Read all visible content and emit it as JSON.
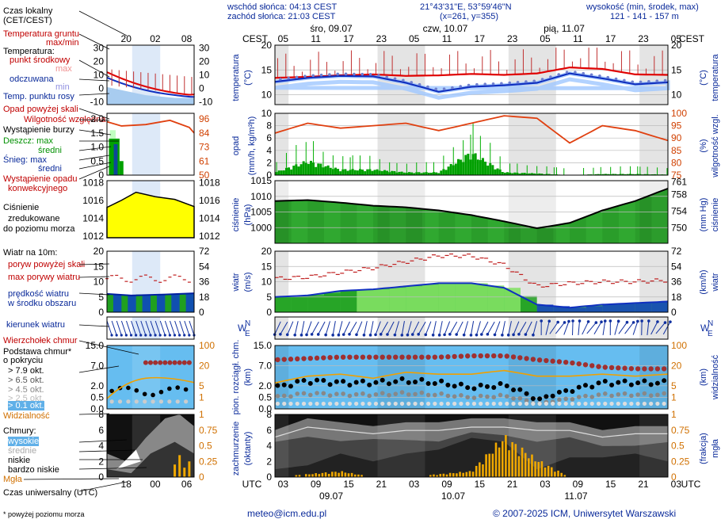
{
  "header": {
    "sunrise": "wschód słońca: 04:13 CEST",
    "sunset": "zachód słońca: 21:03 CEST",
    "coords": "21°43'31\"E, 53°59'46\"N",
    "grid": "(x=261, y=355)",
    "altitude_label": "wysokość (min, środek, max)",
    "altitude_values": "121 - 141 - 157 m"
  },
  "top_axis": {
    "tz": "CEST",
    "days": [
      "śro, 09.07",
      "czw, 10.07",
      "pią, 11.07"
    ],
    "hours": [
      "05",
      "11",
      "17",
      "23",
      "05",
      "11",
      "17",
      "23",
      "05",
      "11",
      "17",
      "23",
      "05"
    ]
  },
  "bottom_axis": {
    "tz": "UTC",
    "hours": [
      "03",
      "09",
      "15",
      "21",
      "03",
      "09",
      "15",
      "21",
      "03",
      "09",
      "15",
      "21",
      "03"
    ],
    "dates": [
      "09.07",
      "10.07",
      "11.07"
    ]
  },
  "legend": {
    "local_time": "Czas lokalny",
    "local_time_sub": "(CET/CEST)",
    "local_hours": [
      "20",
      "02",
      "08"
    ],
    "utc_label": "Czas uniwersalny (UTC)",
    "utc_hours": [
      "18",
      "00",
      "06"
    ],
    "footnote": "* powyżej poziomu morza",
    "temp": {
      "ground": "Temperatura gruntu",
      "ground_sub": "max/min",
      "title": "Temperatura:",
      "mid": "punkt środkowy",
      "max": "max",
      "min": "min",
      "felt": "odczuwana",
      "felt_max": "max",
      "felt_min": "min",
      "dew": "Temp. punktu rosy",
      "ticks": [
        "30",
        "20",
        "10",
        "0",
        "-10"
      ]
    },
    "precip": {
      "over": "Opad powyżej skali",
      "storm": "Wystąpienie burzy",
      "rh": "Wilgotność względna",
      "rain_max": "Deszcz: max",
      "rain_mid": "średni",
      "snow_max": "Śnieg:    max",
      "snow_mid": "średni",
      "conv": "Wystąpienie opadu",
      "conv2": "konwekcyjnego",
      "ticks_left": [
        "2.0",
        "1.5",
        "1.0",
        "0.5",
        "0"
      ],
      "ticks_right": [
        "96",
        "84",
        "73",
        "61",
        "50"
      ]
    },
    "pressure": {
      "l1": "Ciśnienie",
      "l2": "zredukowane",
      "l3": "do poziomu morza",
      "ticks_left": [
        "1018",
        "1016",
        "1014",
        "1012"
      ],
      "ticks_right": [
        "1018",
        "1016",
        "1014",
        "1012"
      ]
    },
    "wind": {
      "title": "Wiatr na 10m:",
      "gust_over": "poryw powyżej skali",
      "gust_max": "max porywy wiatru",
      "speed": "prędkość wiatru",
      "speed2": "w środku obszaru",
      "direction": "kierunek wiatru",
      "ticks_left": [
        "20",
        "15",
        "10",
        "5",
        "0"
      ],
      "ticks_right": [
        "72",
        "54",
        "36",
        "18",
        "0"
      ]
    },
    "clouds": {
      "top": "Wierzchołek chmur",
      "base": "Podstawa chmur*",
      "base2": "o pokryciu",
      "o79": "> 7.9 okt.",
      "o65": "> 6.5 okt.",
      "o45": "> 4.5 okt.",
      "o25": "> 2.5 okt.",
      "o01": "> 0.1 okt.",
      "vis": "Widzialność",
      "ticks_left": [
        "15.0",
        "7.0",
        "2.0",
        "0.5",
        "0.0"
      ],
      "ticks_right": [
        "100",
        "20",
        "5",
        "1"
      ]
    },
    "cover": {
      "title": "Chmury:",
      "high": "wysokie",
      "mid": "średnie",
      "low": "niskie",
      "vlow": "bardzo niskie",
      "fog": "Mgła",
      "ticks_left": [
        "8",
        "6",
        "4",
        "2",
        "0"
      ],
      "ticks_right": [
        "1",
        "0.75",
        "0.5",
        "0.25",
        "0"
      ]
    }
  },
  "axes_labels": {
    "temp_l": "temperatura",
    "temp_l2": "(°C)",
    "temp_r": "(°C)",
    "temp_r2": "temperatura",
    "prec_l": "opad",
    "prec_l2": "(mm/h, kg/m²h)",
    "prec_r": "(%)",
    "prec_r2": "wilgotność wzgl.",
    "pres_l": "ciśnienie",
    "pres_l2": "(hPa)",
    "pres_r": "(mm Hg)",
    "pres_r2": "ciśnienie",
    "wind_l": "wiatr",
    "wind_l2": "(m/s)",
    "wind_r": "(km/h)",
    "wind_r2": "wiatr",
    "cloud_l": "pion. rozciągł. chm.",
    "cloud_l2": "(km)",
    "cloud_r": "(km)",
    "cloud_r2": "widzialność",
    "cover_l": "zachmurzenie",
    "cover_l2": "(oktanty)",
    "cover_r": "(frakcja)",
    "cover_r2": "mgła"
  },
  "footer": {
    "email": "meteo@icm.edu.pl",
    "copyright": "© 2007-2025 ICM, Uniwersytet Warszawski"
  },
  "colors": {
    "red": "#e00000",
    "blue": "#1030c0",
    "green": "#00a000",
    "yellow": "#ffff00",
    "orange": "#e89000",
    "navy": "#000080"
  },
  "chart_data": [
    {
      "type": "line",
      "title": "temperatura",
      "ylabel": "(°C)",
      "ylim": [
        8,
        20
      ],
      "yticks": [
        10,
        15,
        20
      ],
      "x_hours_utc": [
        0,
        6,
        12,
        18,
        24,
        30,
        36,
        42,
        48,
        54,
        60,
        66,
        72
      ],
      "series": [
        {
          "name": "punkt środkowy",
          "values": [
            13.4,
            13.6,
            13.9,
            14.1,
            13.8,
            13.9,
            14.2,
            14.0,
            14.3,
            15.5,
            15.2,
            14.1,
            14.0
          ]
        },
        {
          "name": "odczuwana",
          "values": [
            12.6,
            13.4,
            13.8,
            13.7,
            12.4,
            10.6,
            11.6,
            11.9,
            12.4,
            14.3,
            13.3,
            12.1,
            12.5
          ]
        }
      ]
    },
    {
      "type": "bar",
      "title": "opad",
      "ylabel": "(mm/h, kg/m²h)",
      "ylim": [
        0,
        10
      ],
      "y2lim": [
        75,
        100
      ],
      "x_hours_utc": [
        0,
        6,
        12,
        18,
        24,
        30,
        36,
        42,
        48,
        54,
        60,
        66,
        72
      ],
      "series": [
        {
          "name": "średni",
          "values": [
            0.5,
            2.5,
            1.0,
            1.0,
            0.5,
            0.5,
            4.0,
            0.5,
            0.3,
            0.0,
            0.2,
            0.2,
            0.1
          ]
        },
        {
          "name": "wilgotność",
          "values": [
            92,
            96,
            94,
            95,
            96,
            93,
            96,
            99,
            98,
            88,
            95,
            93,
            89
          ]
        }
      ]
    },
    {
      "type": "area",
      "title": "ciśnienie",
      "ylabel": "(hPa)",
      "ylim": [
        995,
        1015
      ],
      "x_hours_utc": [
        0,
        6,
        12,
        18,
        24,
        30,
        36,
        42,
        48,
        54,
        60,
        66,
        72
      ],
      "values": [
        1008.5,
        1008.8,
        1008.0,
        1007.0,
        1006.5,
        1005.5,
        1004.0,
        1002.0,
        999.8,
        1001.5,
        1005.5,
        1008.5,
        1012.5
      ]
    },
    {
      "type": "line",
      "title": "wiatr",
      "ylabel": "(m/s)",
      "ylim": [
        0,
        20
      ],
      "x_hours_utc": [
        0,
        6,
        12,
        18,
        24,
        30,
        36,
        42,
        48,
        54,
        60,
        66,
        72
      ],
      "series": [
        {
          "name": "prędkość wiatru",
          "values": [
            5.0,
            5.5,
            7.0,
            7.5,
            8.5,
            9.5,
            9.5,
            8.0,
            2.5,
            1.5,
            2.5,
            3.0,
            3.5
          ]
        },
        {
          "name": "max porywy wiatru",
          "values": [
            11.0,
            11.5,
            13.0,
            14.5,
            16.5,
            18.5,
            18.5,
            15.5,
            8.5,
            9.5,
            10.0,
            10.0,
            10.5
          ]
        }
      ]
    },
    {
      "type": "scatter",
      "title": "pion. rozciągł. chm.",
      "ylabel": "(km)",
      "ylim": [
        0,
        15
      ],
      "x_hours_utc": [
        0,
        6,
        12,
        18,
        24,
        30,
        36,
        42,
        48,
        54,
        60,
        66,
        72
      ],
      "series": [
        {
          "name": "Wierzchołek chmur",
          "values": [
            9.0,
            9.5,
            10.0,
            10.0,
            10.0,
            10.0,
            10.5,
            10.5,
            9.0,
            8.0,
            6.5,
            6.0,
            6.0
          ]
        },
        {
          "name": "> 7.9 okt.",
          "values": [
            2.0,
            3.5,
            3.0,
            3.0,
            3.5,
            3.0,
            2.0,
            2.5,
            0.3,
            1.5,
            3.0,
            3.0,
            3.0
          ]
        },
        {
          "name": "widzialność",
          "values": [
            2.5,
            4.0,
            4.5,
            3.5,
            5.0,
            4.5,
            4.5,
            5.5,
            4.0,
            4.0,
            4.5,
            4.0,
            4.5
          ]
        }
      ]
    },
    {
      "type": "area",
      "title": "zachmurzenie",
      "ylabel": "(oktanty)",
      "ylim": [
        0,
        8
      ],
      "x_hours_utc": [
        0,
        6,
        12,
        18,
        24,
        30,
        36,
        42,
        48,
        54,
        60,
        66,
        72
      ],
      "series": [
        {
          "name": "wysokie",
          "values": [
            6.0,
            7.5,
            7.0,
            6.5,
            7.0,
            7.0,
            7.5,
            7.5,
            7.0,
            7.0,
            6.0,
            6.5,
            6.5
          ]
        },
        {
          "name": "niskie",
          "values": [
            1.0,
            1.5,
            3.0,
            2.0,
            3.0,
            3.5,
            5.0,
            4.5,
            1.0,
            2.5,
            2.5,
            3.0,
            2.0
          ]
        },
        {
          "name": "mgła",
          "values": [
            0.0,
            0.05,
            0.1,
            0.0,
            0.0,
            0.05,
            0.1,
            0.7,
            0.3,
            0.0,
            0.0,
            0.0,
            0.0
          ]
        }
      ]
    }
  ]
}
